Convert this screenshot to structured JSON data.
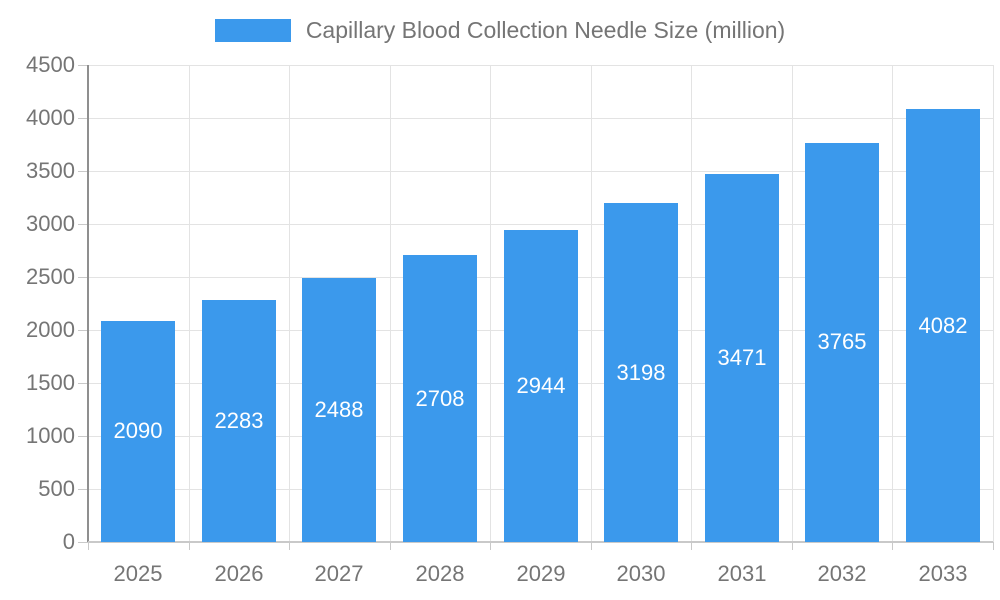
{
  "legend": {
    "label": "Capillary Blood Collection Needle Size (million)",
    "swatch_color": "#3b99ec"
  },
  "chart_data": {
    "type": "bar",
    "title": "Capillary Blood Collection Needle Size (million)",
    "series_name": "Capillary Blood Collection Needle Size (million)",
    "categories": [
      "2025",
      "2026",
      "2027",
      "2028",
      "2029",
      "2030",
      "2031",
      "2032",
      "2033"
    ],
    "values": [
      2090,
      2283,
      2488,
      2708,
      2944,
      3198,
      3471,
      3765,
      4082
    ],
    "xlabel": "",
    "ylabel": "",
    "ylim": [
      0,
      4500
    ],
    "ytick_step": 500,
    "yticks": [
      0,
      500,
      1000,
      1500,
      2000,
      2500,
      3000,
      3500,
      4000,
      4500
    ],
    "grid": true,
    "legend_position": "top-center",
    "bar_color": "#3b99ec",
    "bar_label_color": "#ffffff",
    "axis_label_color": "#757575",
    "gridline_color": "#e3e3e3",
    "y_axis_line_color": "#8f8f8f",
    "x_axis_line_color": "#c9c9c9"
  }
}
